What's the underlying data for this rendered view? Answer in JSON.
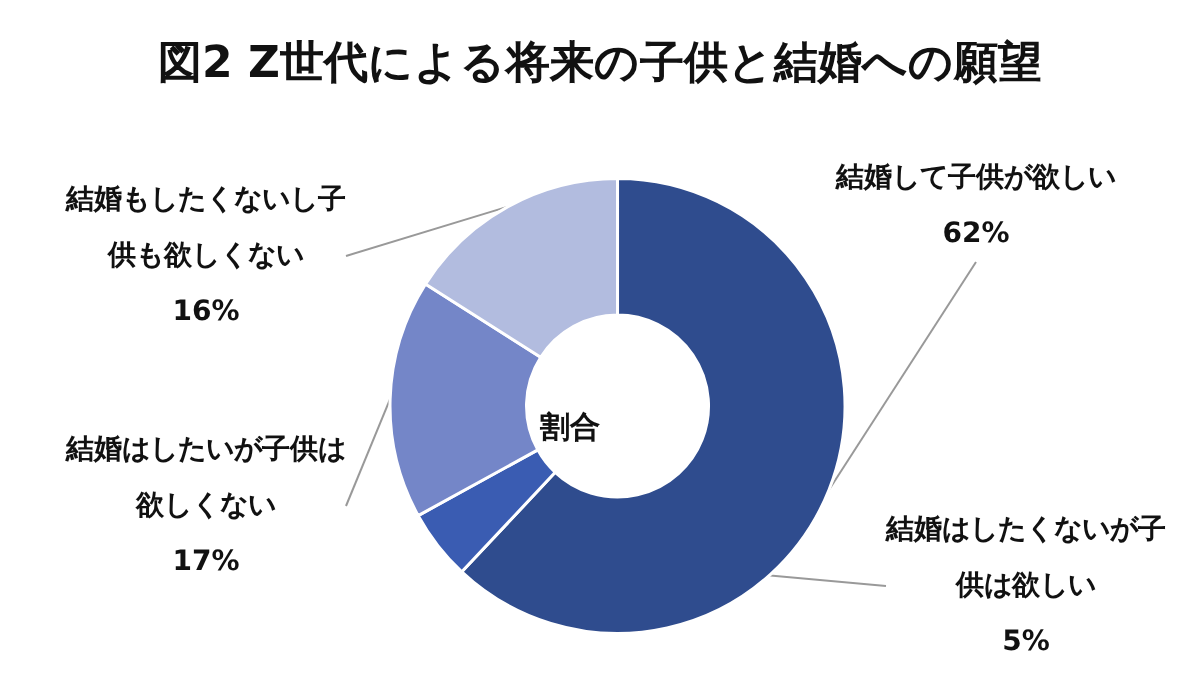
{
  "chart_data": {
    "type": "donut",
    "title": "図2 Z世代による将来の子供と結婚への願望",
    "categories": [
      "結婚して子供が欲しい",
      "結婚はしたくないが子供は欲しい",
      "結婚はしたいが子供は欲しくない",
      "結婚もしたくないし子供も欲しくない"
    ],
    "values": [
      62,
      5,
      17,
      16
    ],
    "value_labels": [
      "62%",
      "5%",
      "17%",
      "16%"
    ],
    "colors": [
      "#2f4c8e",
      "#3a5cb2",
      "#7486c8",
      "#b2bcdf"
    ],
    "annotations": [
      "割合"
    ],
    "legend": false
  }
}
